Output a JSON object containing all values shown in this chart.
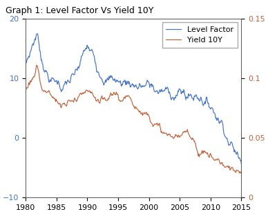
{
  "title": "Graph 1: Level Factor Vs Yield 10Y",
  "xlim": [
    1980,
    2015
  ],
  "left_ylim": [
    -10,
    20
  ],
  "right_ylim": [
    0,
    0.15
  ],
  "left_yticks": [
    -10,
    0,
    10,
    20
  ],
  "right_yticks": [
    0,
    0.05,
    0.1,
    0.15
  ],
  "xticks": [
    1980,
    1985,
    1990,
    1995,
    2000,
    2005,
    2010,
    2015
  ],
  "blue_color": "#4472c4",
  "orange_color": "#c0623a",
  "legend_labels": [
    "Level Factor",
    "Yield 10Y"
  ],
  "bg_color": "#ffffff",
  "title_fontsize": 9,
  "tick_fontsize": 8,
  "legend_fontsize": 8
}
